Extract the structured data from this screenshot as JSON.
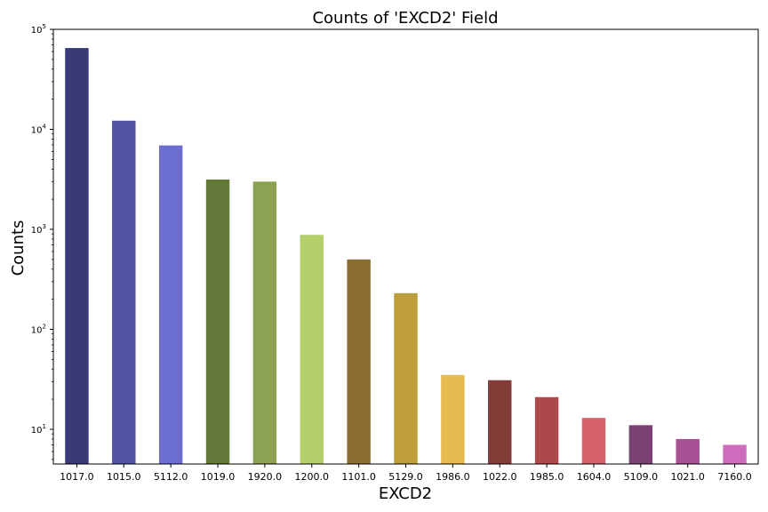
{
  "chart_data": {
    "type": "bar",
    "title": "Counts of 'EXCD2' Field",
    "xlabel": "EXCD2",
    "ylabel": "Counts",
    "yscale": "log",
    "ylim": [
      4.5,
      100000
    ],
    "y_ticks": [
      {
        "value": 10,
        "base": "10",
        "exp": "1"
      },
      {
        "value": 100,
        "base": "10",
        "exp": "2"
      },
      {
        "value": 1000,
        "base": "10",
        "exp": "3"
      },
      {
        "value": 10000,
        "base": "10",
        "exp": "4"
      },
      {
        "value": 100000,
        "base": "10",
        "exp": "5"
      }
    ],
    "grid": false,
    "categories": [
      "1017.0",
      "1015.0",
      "5112.0",
      "1019.0",
      "1920.0",
      "1200.0",
      "1101.0",
      "5129.0",
      "1986.0",
      "1022.0",
      "1985.0",
      "1604.0",
      "5109.0",
      "1021.0",
      "7160.0"
    ],
    "values": [
      65000,
      12200,
      6900,
      3150,
      3000,
      880,
      500,
      230,
      35,
      31,
      21,
      13,
      11,
      8,
      7
    ],
    "colors": [
      "#393b79",
      "#5254a3",
      "#6b6ecf",
      "#637939",
      "#8ca252",
      "#b5cf6b",
      "#8c6d31",
      "#bd9e39",
      "#e7ba52",
      "#843c39",
      "#ad494a",
      "#d6616b",
      "#7b4173",
      "#a55194",
      "#ce6dbd"
    ]
  }
}
